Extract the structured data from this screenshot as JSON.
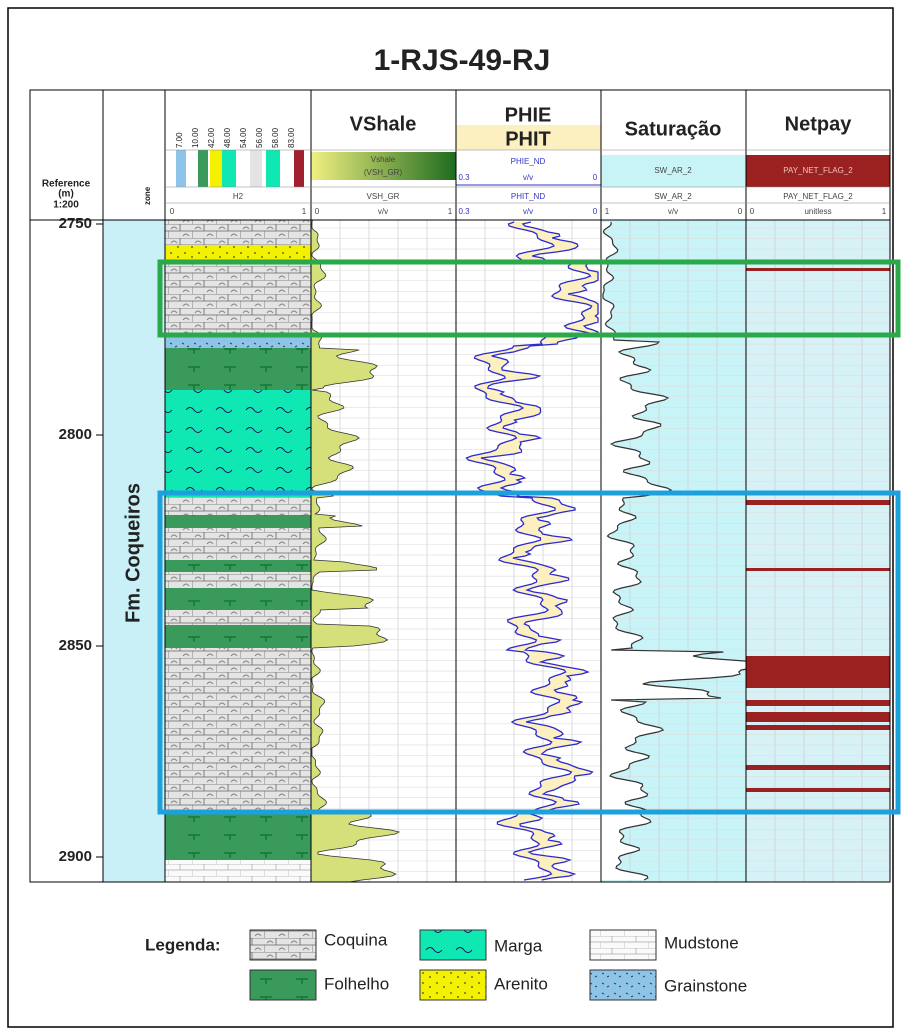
{
  "title": "1-RJS-49-RJ",
  "reference_header": {
    "line1": "Reference",
    "line2": "(m)",
    "line3": "1:200"
  },
  "zone_header": "zone",
  "zone_label": "Fm. Coqueiros",
  "depth_ticks": [
    2750,
    2800,
    2850,
    2900
  ],
  "lithology_track": {
    "values": [
      "7.00",
      "10.00",
      "42.00",
      "48.00",
      "54.00",
      "56.00",
      "58.00",
      "83.00"
    ],
    "name": "H2",
    "min": "0",
    "max": "1"
  },
  "tracks": [
    {
      "title": "VShale",
      "curve": "Vshale",
      "mnemonic": "(VSH_GR)",
      "name": "VSH_GR",
      "unit": "v/v",
      "left": "0",
      "right": "1"
    },
    {
      "title": "PHIE",
      "title2": "PHIT",
      "curve": "PHIE_ND",
      "unit": "v/v",
      "left": "0.3",
      "right": "0",
      "curve2": "PHIT_ND",
      "unit2": "v/v",
      "left2": "0.3",
      "right2": "0"
    },
    {
      "title": "Saturação",
      "curve": "SW_AR_2",
      "name": "SW_AR_2",
      "unit": "v/v",
      "left": "1",
      "right": "0"
    },
    {
      "title": "Netpay",
      "curve": "PAY_NET_FLAG_2",
      "name": "PAY_NET_FLAG_2",
      "unit": "unitless",
      "left": "0",
      "right": "1"
    }
  ],
  "legend": {
    "title": "Legenda:",
    "items": [
      "Coquina",
      "Marga",
      "Mudstone",
      "Folhelho",
      "Arenito",
      "Grainstone"
    ]
  }
}
